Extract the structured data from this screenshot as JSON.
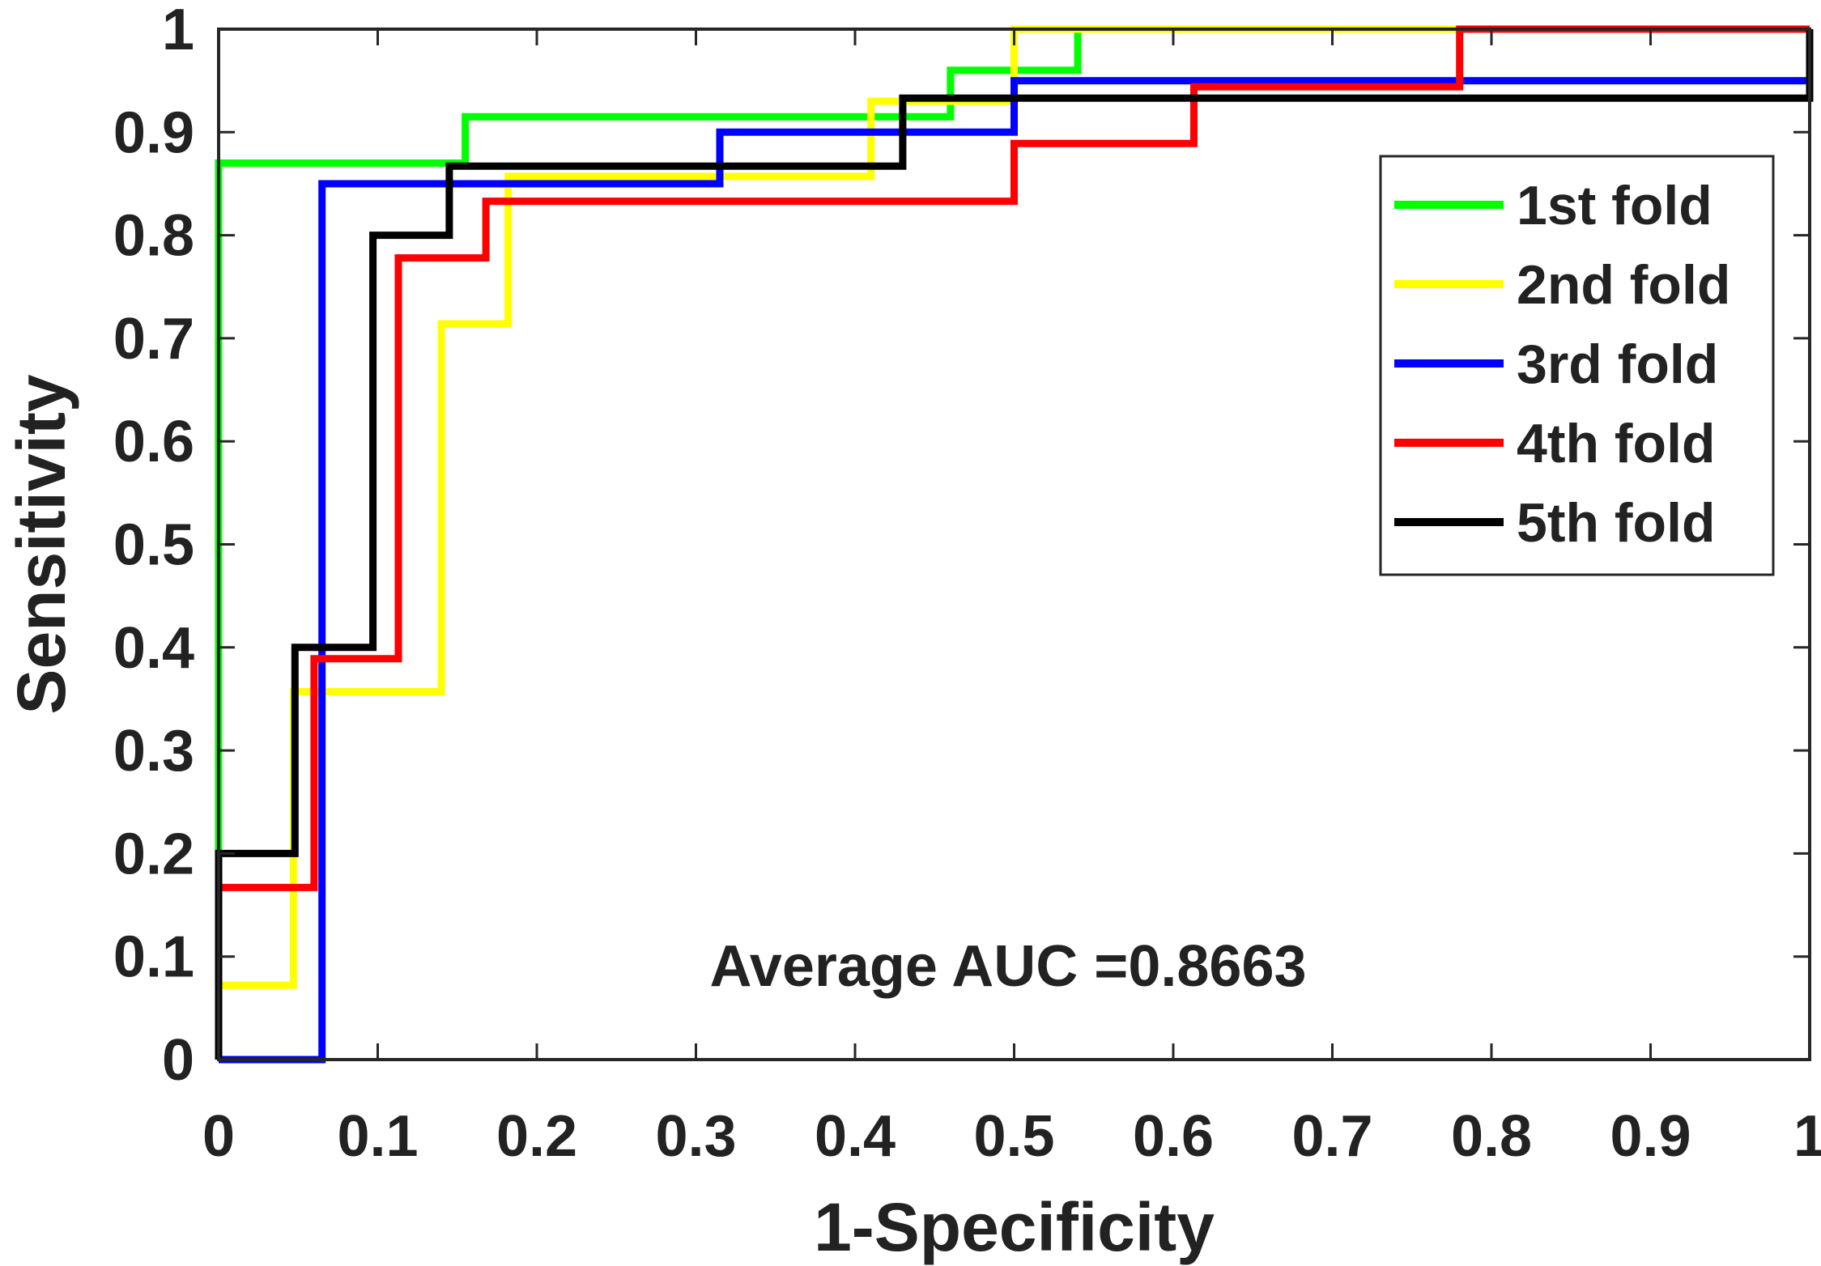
{
  "chart_data": {
    "type": "line",
    "xlabel": "1-Specificity",
    "ylabel": "Sensitivity",
    "xlim": [
      0,
      1
    ],
    "ylim": [
      0,
      1
    ],
    "x_ticks": [
      "0",
      "0.1",
      "0.2",
      "0.3",
      "0.4",
      "0.5",
      "0.6",
      "0.7",
      "0.8",
      "0.9",
      "1"
    ],
    "y_ticks": [
      "0",
      "0.1",
      "0.2",
      "0.3",
      "0.4",
      "0.5",
      "0.6",
      "0.7",
      "0.8",
      "0.9",
      "1"
    ],
    "grid": false,
    "legend_position": "top-right",
    "annotation": "Average AUC =0.8663",
    "series": [
      {
        "name": "1st fold",
        "color": "#00ff00",
        "x": [
          0,
          0,
          0.155,
          0.155,
          0.46,
          0.46,
          0.54,
          0.54,
          1.0
        ],
        "y": [
          0.2,
          0.87,
          0.87,
          0.915,
          0.915,
          0.96,
          0.96,
          1.0,
          1.0
        ]
      },
      {
        "name": "2nd fold",
        "color": "#ffff00",
        "x": [
          0,
          0.047,
          0.047,
          0.14,
          0.14,
          0.182,
          0.182,
          0.41,
          0.41,
          0.5,
          0.5,
          1.0
        ],
        "y": [
          0.072,
          0.072,
          0.357,
          0.357,
          0.714,
          0.714,
          0.857,
          0.857,
          0.93,
          0.93,
          1.0,
          1.0
        ]
      },
      {
        "name": "3rd fold",
        "color": "#0000ff",
        "x": [
          0,
          0.065,
          0.065,
          0.315,
          0.315,
          0.5,
          0.5,
          1.0
        ],
        "y": [
          0,
          0,
          0.85,
          0.85,
          0.9,
          0.9,
          0.95,
          0.95
        ]
      },
      {
        "name": "4th fold",
        "color": "#ff0000",
        "x": [
          0,
          0.06,
          0.06,
          0.113,
          0.113,
          0.168,
          0.168,
          0.5,
          0.5,
          0.613,
          0.613,
          0.78,
          0.78,
          1.0
        ],
        "y": [
          0.167,
          0.167,
          0.389,
          0.389,
          0.778,
          0.778,
          0.833,
          0.833,
          0.889,
          0.889,
          0.944,
          0.944,
          1.0,
          1.0
        ]
      },
      {
        "name": "5th fold",
        "color": "#000000",
        "x": [
          0,
          0,
          0.048,
          0.048,
          0.097,
          0.097,
          0.145,
          0.145,
          0.43,
          0.43,
          1.0,
          1.0
        ],
        "y": [
          0,
          0.2,
          0.2,
          0.4,
          0.4,
          0.8,
          0.8,
          0.867,
          0.867,
          0.933,
          0.933,
          1.0
        ]
      }
    ]
  }
}
